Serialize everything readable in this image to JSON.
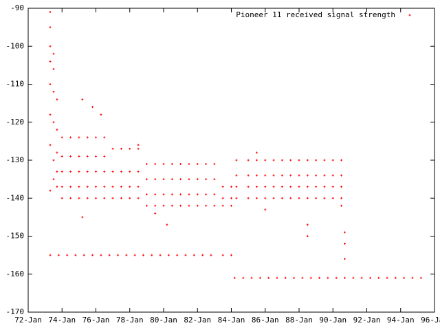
{
  "chart_data": {
    "type": "scatter",
    "xlim": [
      1972,
      1996
    ],
    "xticks": [
      {
        "value": 1972,
        "label": "72-Jan"
      },
      {
        "value": 1974,
        "label": "74-Jan"
      },
      {
        "value": 1976,
        "label": "76-Jan"
      },
      {
        "value": 1978,
        "label": "78-Jan"
      },
      {
        "value": 1980,
        "label": "80-Jan"
      },
      {
        "value": 1982,
        "label": "82-Jan"
      },
      {
        "value": 1984,
        "label": "84-Jan"
      },
      {
        "value": 1986,
        "label": "86-Jan"
      },
      {
        "value": 1988,
        "label": "88-Jan"
      },
      {
        "value": 1990,
        "label": "90-Jan"
      },
      {
        "value": 1992,
        "label": "92-Jan"
      },
      {
        "value": 1994,
        "label": "94-Jan"
      },
      {
        "value": 1996,
        "label": "96-Jan"
      }
    ],
    "ylim": [
      -170,
      -90
    ],
    "yticks": [
      -170,
      -160,
      -150,
      -140,
      -130,
      -120,
      -110,
      -100,
      -90
    ],
    "legend": "top-right",
    "series": [
      {
        "name": "Pioneer 11 received signal strength",
        "color": "#ff0000",
        "x": [
          1973.3,
          1973.3,
          1973.3,
          1973.3,
          1973.3,
          1973.3,
          1973.3,
          1973.3,
          1973.5,
          1973.5,
          1973.5,
          1973.5,
          1973.5,
          1973.5,
          1973.7,
          1973.7,
          1973.7,
          1973.7,
          1973.7,
          1974,
          1974,
          1974,
          1974,
          1974,
          1974.5,
          1974.5,
          1974.5,
          1974.5,
          1974.5,
          1975,
          1975,
          1975,
          1975,
          1975,
          1975.5,
          1975.5,
          1975.5,
          1975.5,
          1975.5,
          1976,
          1976,
          1976,
          1976,
          1976,
          1976.5,
          1976.5,
          1976.5,
          1976.5,
          1976.5,
          1975.2,
          1975.2,
          1976.3,
          1975.8,
          1977,
          1977,
          1977,
          1977,
          1977.5,
          1977.5,
          1977.5,
          1977.5,
          1978,
          1978,
          1978,
          1978,
          1978.5,
          1978.5,
          1978.5,
          1978.5,
          1978.5,
          1979,
          1979,
          1979,
          1979,
          1979.5,
          1979.5,
          1979.5,
          1979.5,
          1980,
          1980,
          1980,
          1980,
          1980.5,
          1980.5,
          1980.5,
          1980.5,
          1981,
          1981,
          1981,
          1981,
          1981.5,
          1981.5,
          1981.5,
          1981.5,
          1982,
          1982,
          1982,
          1982,
          1982.5,
          1982.5,
          1982.5,
          1982.5,
          1983,
          1983,
          1983,
          1983,
          1980.2,
          1979.5,
          1983.5,
          1983.5,
          1983.5,
          1984,
          1984,
          1984,
          1984.3,
          1984.3,
          1984.3,
          1984.3,
          1985,
          1985,
          1985,
          1985,
          1985.5,
          1985.5,
          1985.5,
          1985.5,
          1986,
          1986,
          1986,
          1986,
          1986.5,
          1986.5,
          1986.5,
          1986.5,
          1987,
          1987,
          1987,
          1987,
          1987.5,
          1987.5,
          1987.5,
          1987.5,
          1988,
          1988,
          1988,
          1988,
          1988.5,
          1988.5,
          1988.5,
          1988.5,
          1989,
          1989,
          1989,
          1989,
          1989.5,
          1989.5,
          1989.5,
          1989.5,
          1990,
          1990,
          1990,
          1990,
          1990.5,
          1990.5,
          1990.5,
          1990.5,
          1985.5,
          1986,
          1988.5,
          1988.5,
          1990.5,
          1990.7,
          1990.7,
          1990.7,
          1973.3,
          1973.8,
          1974.3,
          1974.8,
          1975.3,
          1975.8,
          1976.3,
          1976.8,
          1977.3,
          1977.8,
          1978.3,
          1978.8,
          1979.3,
          1979.8,
          1980.3,
          1980.8,
          1981.3,
          1981.8,
          1982.3,
          1982.8,
          1983.5,
          1984,
          1984.2,
          1984.7,
          1985.2,
          1985.7,
          1986.2,
          1986.7,
          1987.2,
          1987.7,
          1988.2,
          1988.7,
          1989.2,
          1989.7,
          1990.2,
          1990.7,
          1991.2,
          1991.7,
          1992.2,
          1992.7,
          1993.2,
          1993.7,
          1994.2,
          1994.7,
          1995.2
        ],
        "values": [
          -91,
          -95,
          -100,
          -104,
          -110,
          -118,
          -126,
          -138,
          -102,
          -106,
          -112,
          -120,
          -130,
          -135,
          -114,
          -122,
          -128,
          -133,
          -137,
          -124,
          -129,
          -133,
          -137,
          -140,
          -124,
          -129,
          -133,
          -137,
          -140,
          -124,
          -129,
          -133,
          -137,
          -140,
          -124,
          -129,
          -133,
          -137,
          -140,
          -124,
          -129,
          -133,
          -137,
          -140,
          -124,
          -129,
          -133,
          -137,
          -140,
          -114,
          -145,
          -118,
          -116,
          -127,
          -133,
          -137,
          -140,
          -127,
          -133,
          -137,
          -140,
          -127,
          -133,
          -137,
          -140,
          -127,
          -133,
          -137,
          -140,
          -126,
          -131,
          -135,
          -139,
          -142,
          -131,
          -135,
          -139,
          -142,
          -131,
          -135,
          -139,
          -142,
          -131,
          -135,
          -139,
          -142,
          -131,
          -135,
          -139,
          -142,
          -131,
          -135,
          -139,
          -142,
          -131,
          -135,
          -139,
          -142,
          -131,
          -135,
          -139,
          -142,
          -131,
          -135,
          -139,
          -142,
          -147,
          -144,
          -137,
          -140,
          -142,
          -137,
          -140,
          -142,
          -130,
          -134,
          -137,
          -140,
          -130,
          -134,
          -137,
          -140,
          -130,
          -134,
          -137,
          -140,
          -130,
          -134,
          -137,
          -140,
          -130,
          -134,
          -137,
          -140,
          -130,
          -134,
          -137,
          -140,
          -130,
          -134,
          -137,
          -140,
          -130,
          -134,
          -137,
          -140,
          -130,
          -134,
          -137,
          -140,
          -130,
          -134,
          -137,
          -140,
          -130,
          -134,
          -137,
          -140,
          -130,
          -134,
          -137,
          -140,
          -130,
          -134,
          -137,
          -140,
          -128,
          -143,
          -147,
          -150,
          -142,
          -149,
          -152,
          -156,
          -155,
          -155,
          -155,
          -155,
          -155,
          -155,
          -155,
          -155,
          -155,
          -155,
          -155,
          -155,
          -155,
          -155,
          -155,
          -155,
          -155,
          -155,
          -155,
          -155,
          -155,
          -155,
          -161,
          -161,
          -161,
          -161,
          -161,
          -161,
          -161,
          -161,
          -161,
          -161,
          -161,
          -161,
          -161,
          -161,
          -161,
          -161,
          -161,
          -161,
          -161,
          -161,
          -161,
          -161,
          -161
        ]
      }
    ]
  }
}
